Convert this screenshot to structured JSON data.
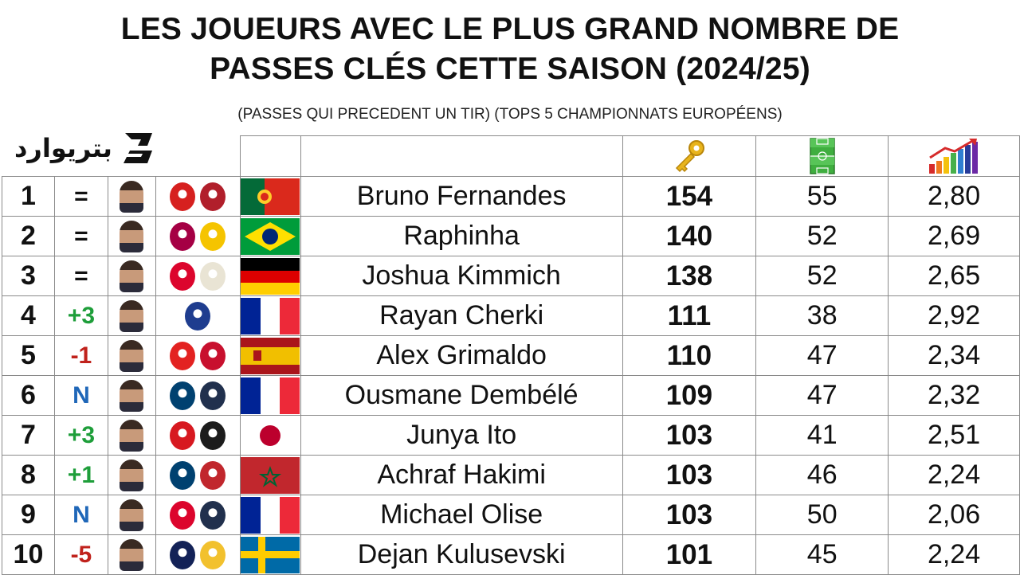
{
  "title_line1": "LES JOUEURS AVEC LE PLUS GRAND NOMBRE DE",
  "title_line2": "PASSES CLÉS CETTE SAISON (2024/25)",
  "subtitle": "(PASSES QUI PRECEDENT UN TIR) (TOPS 5 CHAMPIONNATS EUROPÉENS)",
  "logo_text": "بتريوارد",
  "header_icons": [
    "key-icon",
    "football-pitch-icon",
    "bar-chart-growth-icon"
  ],
  "colors": {
    "up": "#1e9e3a",
    "down": "#c0221c",
    "new": "#1f67b8",
    "border": "#8a8a8a"
  },
  "rows": [
    {
      "rank": "1",
      "change": "=",
      "trend": "eq",
      "name": "Bruno Fernandes",
      "key_passes": "154",
      "matches": "55",
      "ratio": "2,80",
      "badges": [
        "#d6201f",
        "#b11f2b"
      ],
      "flag": "portugal"
    },
    {
      "rank": "2",
      "change": "=",
      "trend": "eq",
      "name": "Raphinha",
      "key_passes": "140",
      "matches": "52",
      "ratio": "2,69",
      "badges": [
        "#a50044",
        "#f5c400"
      ],
      "flag": "brazil"
    },
    {
      "rank": "3",
      "change": "=",
      "trend": "eq",
      "name": "Joshua Kimmich",
      "key_passes": "138",
      "matches": "52",
      "ratio": "2,65",
      "badges": [
        "#dc052d",
        "#e9e4d4"
      ],
      "flag": "germany"
    },
    {
      "rank": "4",
      "change": "+3",
      "trend": "up",
      "name": "Rayan Cherki",
      "key_passes": "111",
      "matches": "38",
      "ratio": "2,92",
      "badges": [
        "#1f3d8f"
      ],
      "flag": "france"
    },
    {
      "rank": "5",
      "change": "-1",
      "trend": "down",
      "name": "Alex Grimaldo",
      "key_passes": "110",
      "matches": "47",
      "ratio": "2,34",
      "badges": [
        "#e32221",
        "#c8102e"
      ],
      "flag": "spain"
    },
    {
      "rank": "6",
      "change": "N",
      "trend": "new",
      "name": "Ousmane Dembélé",
      "key_passes": "109",
      "matches": "47",
      "ratio": "2,32",
      "badges": [
        "#004170",
        "#21304d"
      ],
      "flag": "france"
    },
    {
      "rank": "7",
      "change": "+3",
      "trend": "up",
      "name": "Junya Ito",
      "key_passes": "103",
      "matches": "41",
      "ratio": "2,51",
      "badges": [
        "#d71920",
        "#1c1c1c"
      ],
      "flag": "japan"
    },
    {
      "rank": "8",
      "change": "+1",
      "trend": "up",
      "name": "Achraf Hakimi",
      "key_passes": "103",
      "matches": "46",
      "ratio": "2,24",
      "badges": [
        "#004170",
        "#c1272d"
      ],
      "flag": "morocco"
    },
    {
      "rank": "9",
      "change": "N",
      "trend": "new",
      "name": "Michael Olise",
      "key_passes": "103",
      "matches": "50",
      "ratio": "2,06",
      "badges": [
        "#dc052d",
        "#21304d"
      ],
      "flag": "france"
    },
    {
      "rank": "10",
      "change": "-5",
      "trend": "down",
      "name": "Dejan Kulusevski",
      "key_passes": "101",
      "matches": "45",
      "ratio": "2,24",
      "badges": [
        "#132257",
        "#f2c12e"
      ],
      "flag": "sweden"
    }
  ]
}
